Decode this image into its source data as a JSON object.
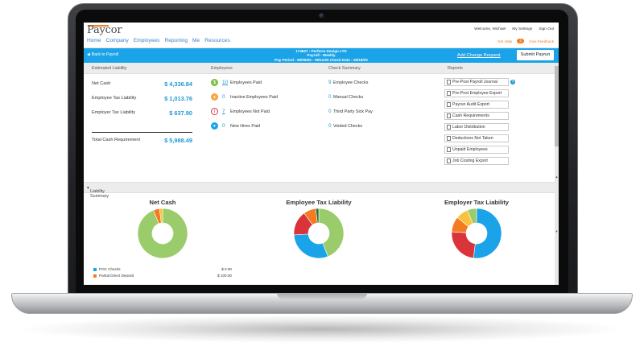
{
  "app": {
    "logo": "Paycor",
    "nav": [
      "Home",
      "Company",
      "Employees",
      "Reporting",
      "Me",
      "Resources"
    ],
    "util_links": [
      "Welcome, Michael",
      "My Settings",
      "Sign Out"
    ],
    "get_help": "Get Help",
    "help_count": "3",
    "give_feedback": "Give Feedback"
  },
  "payroll_bar": {
    "back_label": "Back to Payroll",
    "line1": "174627 - Perform Design LTD",
    "line2": "Payroll - Weekly",
    "line3": "Pay Period - 09/05/20 - 09/11/20    Check Date - 09/18/20",
    "add_change_request": "Add Change Request",
    "submit_label": "Submit Payrun"
  },
  "sections": {
    "liability": "Estimated Liability",
    "employees": "Employees",
    "check_summary": "Check Summary",
    "reports": "Reports"
  },
  "liability": [
    {
      "label": "Net Cash",
      "amount": "$ 4,336.84"
    },
    {
      "label": "Employee Tax Liability",
      "amount": "$ 1,013.76"
    },
    {
      "label": "Employer Tax Liability",
      "amount": "$ 637.90"
    },
    {
      "label": "Total Cash Requirement",
      "amount": "$ 5,988.49"
    }
  ],
  "employees": [
    {
      "count": "10",
      "label": "Employees Paid",
      "icon": "dollar-icon",
      "color": "#7ac142",
      "link": true
    },
    {
      "count": "0",
      "label": "Inactive Employees Paid",
      "icon": "inactive-person-icon",
      "color": "#f7a541",
      "link": false
    },
    {
      "count": "7",
      "label": "Employees Not Paid",
      "icon": "not-paid-icon",
      "color": "#d9343a",
      "link": true
    },
    {
      "count": "0",
      "label": "New Hires Paid",
      "icon": "new-hire-icon",
      "color": "#1aa3e8",
      "link": false
    }
  ],
  "checks": [
    {
      "count": "9",
      "label": "Employee Checks"
    },
    {
      "count": "0",
      "label": "Manual Checks"
    },
    {
      "count": "0",
      "label": "Third Party Sick Pay"
    },
    {
      "count": "0",
      "label": "Voided Checks"
    }
  ],
  "reports": [
    "Pre-Post Payroll Journal",
    "Pre-Post Employee Export",
    "Payrun Audit Export",
    "Cash Requirements",
    "Labor Distribution",
    "Deductions Not Taken",
    "Unpaid Employees",
    "Job Costing Export"
  ],
  "help_mark": "?",
  "liability_summary": "Liability Summary",
  "colors": {
    "blue": "#1aa3e8",
    "green": "#9bcc6b",
    "red": "#d9343a",
    "orange": "#f47b20",
    "yellow": "#f9c23c",
    "dark_green": "#2d6e3a"
  },
  "chart_data": [
    {
      "type": "pie",
      "title": "Net Cash",
      "categories": [
        "Green",
        "Orange",
        "Yellow"
      ],
      "values": [
        94,
        4,
        2
      ]
    },
    {
      "type": "pie",
      "title": "Employee Tax Liability",
      "categories": [
        "Green",
        "Blue",
        "Red",
        "Orange",
        "Dark Green"
      ],
      "values": [
        44,
        30,
        16,
        8,
        2
      ]
    },
    {
      "type": "pie",
      "title": "Employer Tax Liability",
      "categories": [
        "Blue",
        "Red",
        "Orange",
        "Yellow",
        "Green"
      ],
      "values": [
        52,
        24,
        10,
        8,
        6
      ]
    }
  ],
  "legend": [
    {
      "label": "POC Checks",
      "value": "$ 0.00",
      "color": "#1aa3e8"
    },
    {
      "label": "Partial Direct Deposit",
      "value": "$ 100.00",
      "color": "#f47b20"
    }
  ]
}
